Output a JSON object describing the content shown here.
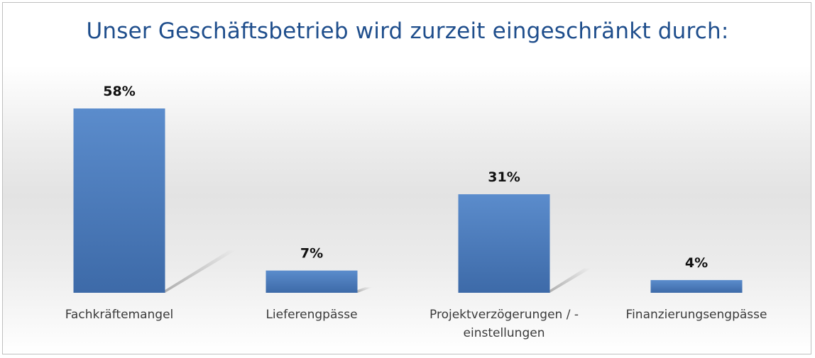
{
  "chart_data": {
    "type": "bar",
    "title": "Unser Geschäftsbetrieb wird zurzeit eingeschränkt durch:",
    "categories": [
      [
        "Fachkräftemangel"
      ],
      [
        "Lieferengpässe"
      ],
      [
        "Projektverzögerungen / -",
        "einstellungen"
      ],
      [
        "Finanzierungsengpässe"
      ]
    ],
    "values": [
      58,
      7,
      31,
      4
    ],
    "value_labels": [
      "58%",
      "7%",
      "31%",
      "4%"
    ],
    "unit": "%",
    "ylim": [
      0,
      100
    ],
    "xlabel": "",
    "ylabel": "",
    "grid": false,
    "legend": "none",
    "colors": {
      "bar_top": "#5b8ccc",
      "bar_bottom": "#3d6aa8",
      "title": "#1f4e8c"
    }
  }
}
